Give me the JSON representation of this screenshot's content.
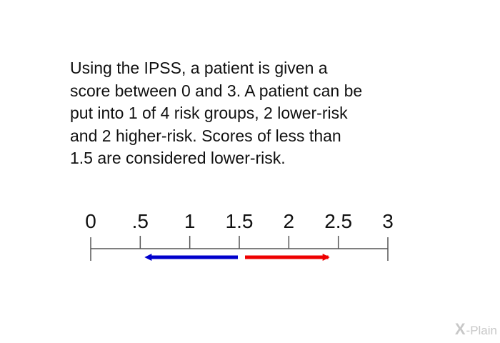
{
  "paragraph": "Using the IPSS, a patient is given a\nscore between 0 and 3. A patient can be\nput into 1 of 4 risk groups, 2 lower-risk\nand 2 higher-risk. Scores of less than\n1.5 are considered lower-risk.",
  "number_line": {
    "min": 0,
    "max": 3,
    "ticks": [
      {
        "value": 0,
        "label": "0"
      },
      {
        "value": 0.5,
        "label": ".5"
      },
      {
        "value": 1,
        "label": "1"
      },
      {
        "value": 1.5,
        "label": "1.5"
      },
      {
        "value": 2,
        "label": "2"
      },
      {
        "value": 2.5,
        "label": "2.5"
      },
      {
        "value": 3,
        "label": "3"
      }
    ],
    "lower_risk_arrow": {
      "from": 1.5,
      "to": 0.5,
      "color": "#0000cc"
    },
    "higher_risk_arrow": {
      "from": 1.5,
      "to": 2.5,
      "color": "#ee0000"
    },
    "line_color": "#555555"
  },
  "watermark": {
    "x_mark": "X",
    "text": "-Plain"
  }
}
